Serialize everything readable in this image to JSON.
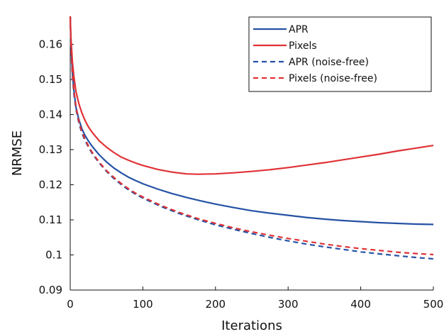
{
  "chart_data": {
    "type": "line",
    "title": "",
    "xlabel": "Iterations",
    "ylabel": "NRMSE",
    "xlim": [
      0,
      500
    ],
    "ylim": [
      0.09,
      0.168
    ],
    "xticks": [
      0,
      100,
      200,
      300,
      400,
      500
    ],
    "xtick_labels": [
      "0",
      "100",
      "200",
      "300",
      "400",
      "500"
    ],
    "yticks": [
      0.09,
      0.1,
      0.11,
      0.12,
      0.13,
      0.14,
      0.15,
      0.16
    ],
    "ytick_labels": [
      "0.09",
      "0.1",
      "0.11",
      "0.12",
      "0.13",
      "0.14",
      "0.15",
      "0.16"
    ],
    "grid": false,
    "legend_position": "top-right",
    "series": [
      {
        "name": "APR",
        "color": "#2452a4",
        "dash": "solid",
        "x": [
          0,
          1,
          3,
          5,
          8,
          12,
          16,
          20,
          25,
          30,
          40,
          50,
          60,
          70,
          80,
          90,
          100,
          120,
          140,
          160,
          180,
          200,
          225,
          250,
          275,
          300,
          325,
          350,
          375,
          400,
          425,
          450,
          475,
          500
        ],
        "y": [
          0.168,
          0.16,
          0.152,
          0.147,
          0.142,
          0.1385,
          0.136,
          0.1342,
          0.1325,
          0.131,
          0.1285,
          0.1265,
          0.1248,
          0.1234,
          0.1222,
          0.1212,
          0.1203,
          0.1188,
          0.1175,
          0.1164,
          0.1154,
          0.1145,
          0.1135,
          0.1126,
          0.1119,
          0.1113,
          0.1107,
          0.1102,
          0.1098,
          0.1095,
          0.1092,
          0.109,
          0.1088,
          0.1087
        ]
      },
      {
        "name": "Pixels",
        "color": "#e03236",
        "dash": "solid",
        "x": [
          0,
          1,
          3,
          5,
          8,
          12,
          16,
          20,
          25,
          30,
          40,
          50,
          60,
          70,
          80,
          90,
          100,
          120,
          140,
          160,
          175,
          200,
          225,
          250,
          275,
          300,
          325,
          350,
          375,
          400,
          425,
          450,
          475,
          500
        ],
        "y": [
          0.168,
          0.162,
          0.155,
          0.151,
          0.1465,
          0.143,
          0.1405,
          0.1385,
          0.1365,
          0.135,
          0.1325,
          0.1307,
          0.1292,
          0.1279,
          0.127,
          0.1262,
          0.1255,
          0.1244,
          0.1236,
          0.1231,
          0.123,
          0.1231,
          0.1234,
          0.1238,
          0.1243,
          0.1249,
          0.1256,
          0.1263,
          0.1271,
          0.1279,
          0.1287,
          0.1296,
          0.1304,
          0.1312
        ]
      },
      {
        "name": "APR (noise-free)",
        "color": "#2452a4",
        "dash": "dashed",
        "x": [
          0,
          1,
          3,
          5,
          8,
          12,
          16,
          20,
          25,
          30,
          40,
          50,
          60,
          70,
          80,
          90,
          100,
          125,
          150,
          175,
          200,
          225,
          250,
          275,
          300,
          325,
          350,
          375,
          400,
          425,
          450,
          475,
          500
        ],
        "y": [
          0.168,
          0.159,
          0.151,
          0.146,
          0.1415,
          0.1375,
          0.1348,
          0.1328,
          0.1308,
          0.129,
          0.1262,
          0.1238,
          0.1218,
          0.1201,
          0.1186,
          0.1173,
          0.1162,
          0.1138,
          0.1118,
          0.1101,
          0.1086,
          0.1073,
          0.1061,
          0.105,
          0.104,
          0.1031,
          0.1023,
          0.1016,
          0.1009,
          0.1003,
          0.0998,
          0.0993,
          0.0989
        ]
      },
      {
        "name": "Pixels (noise-free)",
        "color": "#e03236",
        "dash": "dashed",
        "x": [
          0,
          1,
          3,
          5,
          8,
          12,
          16,
          20,
          25,
          30,
          40,
          50,
          60,
          70,
          80,
          90,
          100,
          125,
          150,
          175,
          200,
          225,
          250,
          275,
          300,
          325,
          350,
          375,
          400,
          425,
          450,
          475,
          500
        ],
        "y": [
          0.168,
          0.16,
          0.152,
          0.147,
          0.1422,
          0.138,
          0.1352,
          0.1332,
          0.1311,
          0.1293,
          0.1264,
          0.124,
          0.1221,
          0.1204,
          0.1189,
          0.1176,
          0.1165,
          0.1141,
          0.1121,
          0.1104,
          0.109,
          0.1077,
          0.1066,
          0.1056,
          0.1047,
          0.1039,
          0.1031,
          0.1024,
          0.1018,
          0.1013,
          0.1008,
          0.1004,
          0.1001
        ]
      }
    ]
  }
}
